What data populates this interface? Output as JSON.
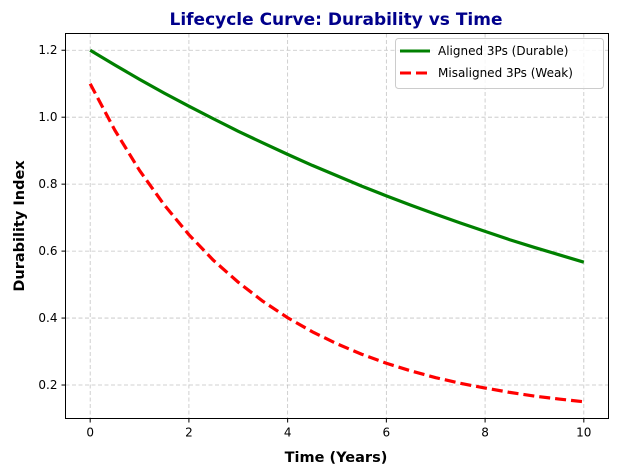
{
  "chart_data": {
    "type": "line",
    "title": "Lifecycle Curve: Durability vs Time",
    "xlabel": "Time (Years)",
    "ylabel": "Durability Index",
    "xlim": [
      -0.5,
      10.5
    ],
    "ylim": [
      0.1,
      1.25
    ],
    "xticks": [
      0,
      2,
      4,
      6,
      8,
      10
    ],
    "yticks": [
      0.2,
      0.4,
      0.6,
      0.8,
      1.0,
      1.2
    ],
    "xtick_labels": [
      "0",
      "2",
      "4",
      "6",
      "8",
      "10"
    ],
    "ytick_labels": [
      "0.2",
      "0.4",
      "0.6",
      "0.8",
      "1.0",
      "1.2"
    ],
    "grid": true,
    "legend_position": "top-right",
    "x": [
      0,
      0.5,
      1,
      1.5,
      2,
      2.5,
      3,
      3.5,
      4,
      4.5,
      5,
      5.5,
      6,
      6.5,
      7,
      7.5,
      8,
      8.5,
      9,
      9.5,
      10
    ],
    "series": [
      {
        "name": "Aligned 3Ps (Durable)",
        "color": "#008000",
        "style": "solid",
        "values": [
          1.2,
          1.156,
          1.113,
          1.072,
          1.033,
          0.995,
          0.958,
          0.923,
          0.889,
          0.856,
          0.825,
          0.794,
          0.765,
          0.737,
          0.71,
          0.684,
          0.659,
          0.634,
          0.611,
          0.589,
          0.567
        ]
      },
      {
        "name": "Misaligned 3Ps (Weak)",
        "color": "#ff0000",
        "style": "dashed",
        "values": [
          1.1,
          0.961,
          0.841,
          0.738,
          0.649,
          0.572,
          0.507,
          0.45,
          0.401,
          0.359,
          0.323,
          0.292,
          0.265,
          0.242,
          0.222,
          0.205,
          0.191,
          0.178,
          0.167,
          0.158,
          0.15
        ]
      }
    ]
  }
}
